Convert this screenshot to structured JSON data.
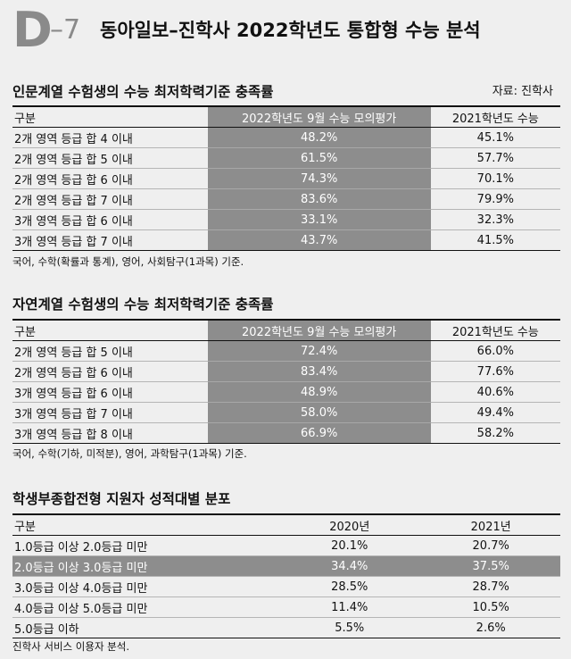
{
  "header": {
    "logo_letter": "D",
    "logo_number": "–7",
    "title": "동아일보–진학사 2022학년도 통합형 수능 분석"
  },
  "section1": {
    "title": "인문계열 수험생의 수능 최저학력기준 충족률",
    "source": "자료: 진학사",
    "columns": [
      "구분",
      "2022학년도 9월 수능 모의평가",
      "2021학년도 수능"
    ],
    "rows": [
      [
        "2개 영역 등급 합 4 이내",
        "48.2%",
        "45.1%"
      ],
      [
        "2개 영역 등급 합 5 이내",
        "61.5%",
        "57.7%"
      ],
      [
        "2개 영역 등급 합 6 이내",
        "74.3%",
        "70.1%"
      ],
      [
        "2개 영역 등급 합 7 이내",
        "83.6%",
        "79.9%"
      ],
      [
        "3개 영역 등급 합 6 이내",
        "33.1%",
        "32.3%"
      ],
      [
        "3개 영역 등급 합 7 이내",
        "43.7%",
        "41.5%"
      ]
    ],
    "note": "국어, 수학(확률과 통계), 영어, 사회탐구(1과목) 기준."
  },
  "section2": {
    "title": "자연계열 수험생의 수능 최저학력기준 충족률",
    "columns": [
      "구분",
      "2022학년도 9월 수능 모의평가",
      "2021학년도 수능"
    ],
    "rows": [
      [
        "2개 영역 등급 합 5 이내",
        "72.4%",
        "66.0%"
      ],
      [
        "2개 영역 등급 합 6 이내",
        "83.4%",
        "77.6%"
      ],
      [
        "3개 영역 등급 합 6 이내",
        "48.9%",
        "40.6%"
      ],
      [
        "3개 영역 등급 합 7 이내",
        "58.0%",
        "49.4%"
      ],
      [
        "3개 영역 등급 합 8 이내",
        "66.9%",
        "58.2%"
      ]
    ],
    "note": "국어, 수학(기하, 미적분), 영어, 과학탐구(1과목) 기준."
  },
  "section3": {
    "title": "학생부종합전형 지원자 성적대별 분포",
    "columns": [
      "구분",
      "2020년",
      "2021년"
    ],
    "rows": [
      [
        "1.0등급 이상 2.0등급 미만",
        "20.1%",
        "20.7%"
      ],
      [
        "2.0등급 이상 3.0등급 미만",
        "34.4%",
        "37.5%"
      ],
      [
        "3.0등급 이상 4.0등급 미만",
        "28.5%",
        "28.7%"
      ],
      [
        "4.0등급 이상 5.0등급 미만",
        "11.4%",
        "10.5%"
      ],
      [
        "5.0등급 이하",
        "5.5%",
        "2.6%"
      ]
    ],
    "note": "진학사 서비스 이용자 분석."
  }
}
